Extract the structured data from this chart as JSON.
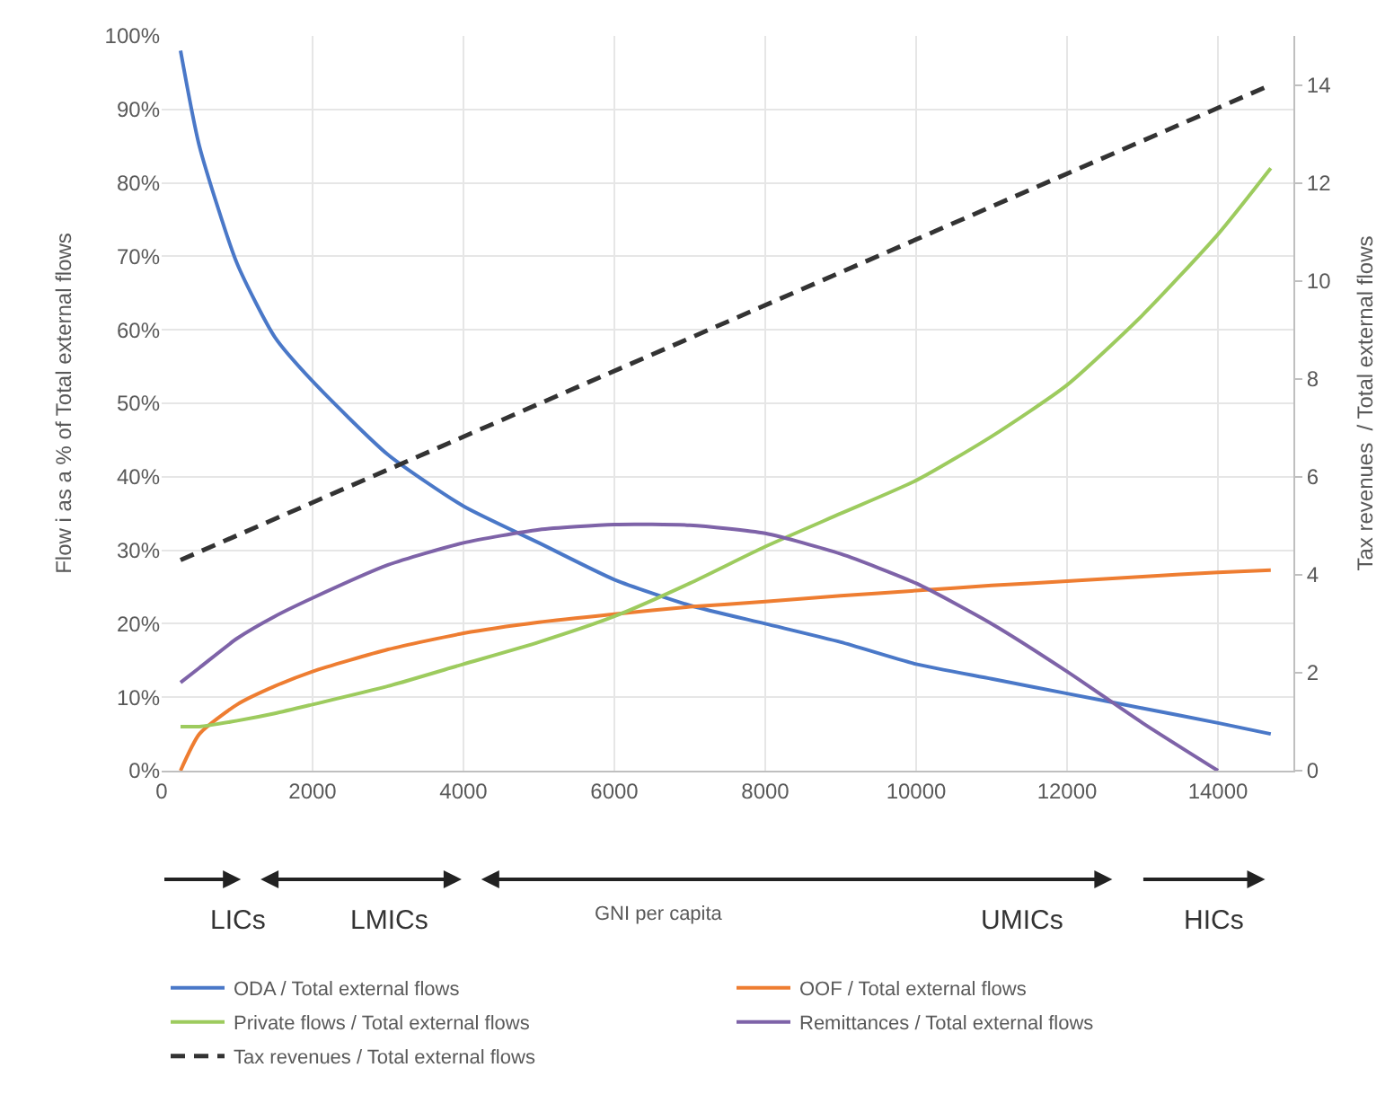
{
  "chart_data": {
    "type": "line",
    "xlabel": null,
    "ylabel": "Flow i as a % of Total external flows",
    "y2label": "Tax revenues  / Total external flows",
    "x": [
      250,
      500,
      1000,
      1500,
      2000,
      3000,
      4000,
      5000,
      6000,
      7000,
      8000,
      9000,
      10000,
      11000,
      12000,
      13000,
      14000,
      14700
    ],
    "series": [
      {
        "name": "ODA / Total external flows",
        "color": "#4a78c8",
        "values": [
          98,
          85,
          69,
          59,
          53,
          43,
          36,
          31,
          26,
          22.5,
          20,
          17.5,
          14.5,
          12.5,
          10.5,
          8.5,
          6.5,
          5
        ]
      },
      {
        "name": "OOF / Total external flows",
        "color": "#ee7d31",
        "values": [
          0,
          5,
          9,
          11.5,
          13.5,
          16.5,
          18.7,
          20.2,
          21.3,
          22.3,
          23,
          23.8,
          24.5,
          25.2,
          25.8,
          26.4,
          27,
          27.3
        ]
      },
      {
        "name": "Private flows / Total external flows",
        "color": "#9dcb5e",
        "values": [
          6,
          6,
          6.8,
          7.8,
          9,
          11.5,
          14.5,
          17.5,
          21,
          25.5,
          30.5,
          35,
          39.5,
          45.5,
          52.5,
          62,
          73,
          82
        ]
      },
      {
        "name": "Remittances / Total external flows",
        "color": "#7e63a8",
        "values": [
          12,
          14,
          18,
          21,
          23.5,
          28,
          31,
          32.8,
          33.5,
          33.4,
          32.3,
          29.5,
          25.5,
          20,
          13.5,
          6.5,
          0,
          null
        ]
      },
      {
        "name": "Tax revenues / Total external flows",
        "color": "#333333",
        "axis": "y2",
        "line_style": "dashed",
        "x": [
          250,
          14700
        ],
        "values": [
          4.3,
          14
        ]
      }
    ],
    "xlim": [
      0,
      15000
    ],
    "xticks": [
      0,
      2000,
      4000,
      6000,
      8000,
      10000,
      12000,
      14000
    ],
    "ylim": [
      0,
      100
    ],
    "yticks": [
      {
        "value": 0,
        "label": "0%"
      },
      {
        "value": 10,
        "label": "10%"
      },
      {
        "value": 20,
        "label": "20%"
      },
      {
        "value": 30,
        "label": "30%"
      },
      {
        "value": 40,
        "label": "40%"
      },
      {
        "value": 50,
        "label": "50%"
      },
      {
        "value": 60,
        "label": "60%"
      },
      {
        "value": 70,
        "label": "70%"
      },
      {
        "value": 80,
        "label": "80%"
      },
      {
        "value": 90,
        "label": "90%"
      },
      {
        "value": 100,
        "label": "100%"
      }
    ],
    "y2lim": [
      0,
      15
    ],
    "y2ticks": [
      0,
      2,
      4,
      6,
      8,
      10,
      12,
      14
    ],
    "annotations": [
      "LICs",
      "LMICs",
      "GNI per capita",
      "UMICs",
      "HICs"
    ],
    "grid": true,
    "legend": "bottom",
    "marker": "none",
    "line_style": "solid"
  }
}
